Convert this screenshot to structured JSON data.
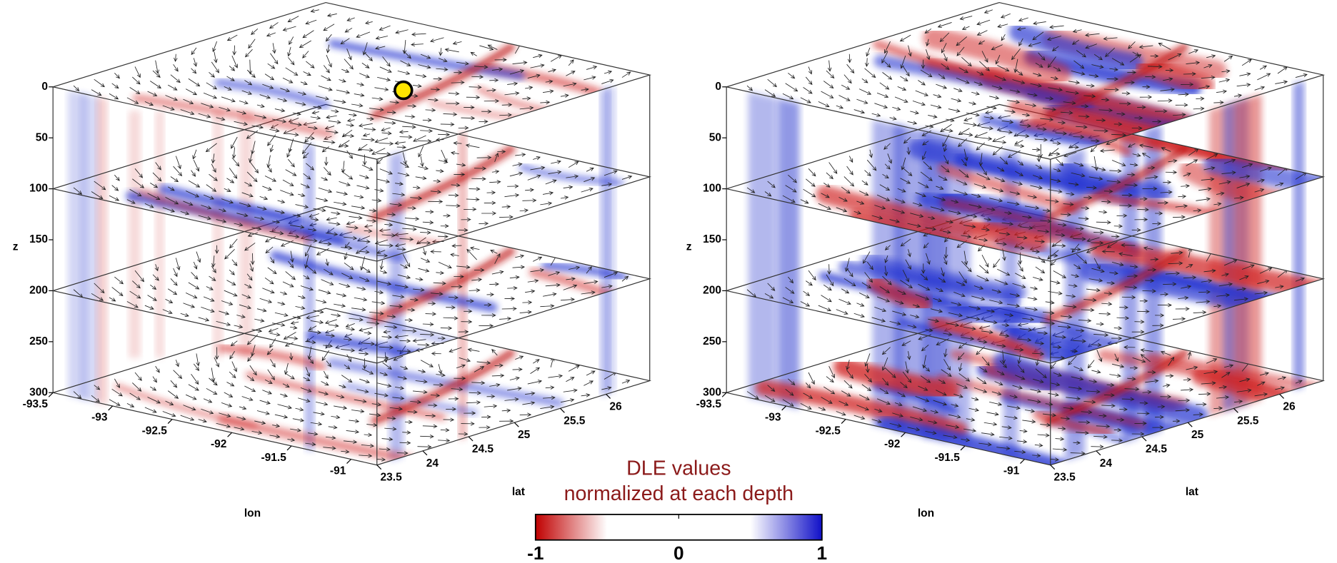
{
  "panels": [
    {
      "z_label": "z",
      "z_ticks": [
        0,
        50,
        100,
        150,
        200,
        250,
        300
      ],
      "lon_label": "lon",
      "lon_ticks": [
        -93.5,
        -93,
        -92.5,
        -92,
        -91.5,
        -91
      ],
      "lat_label": "lat",
      "lat_ticks": [
        23.5,
        24,
        24.5,
        25,
        25.5,
        26
      ]
    },
    {
      "z_label": "z",
      "z_ticks": [
        0,
        50,
        100,
        150,
        200,
        250,
        300
      ],
      "lon_label": "lon",
      "lon_ticks": [
        -93.5,
        -93,
        -92.5,
        -92,
        -91.5,
        -91
      ],
      "lat_label": "lat",
      "lat_ticks": [
        23.5,
        24,
        24.5,
        25,
        25.5,
        26
      ]
    }
  ],
  "colorbar": {
    "title": [
      "DLE values",
      "normalized at each depth"
    ],
    "ticks": [
      -1,
      0,
      1
    ]
  }
}
